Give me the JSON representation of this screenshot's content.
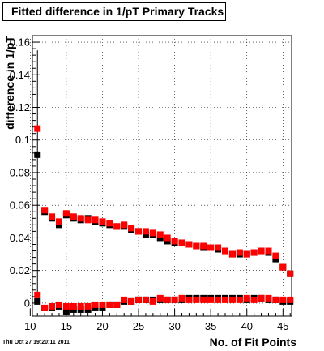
{
  "chart_data": {
    "type": "scatter",
    "title": "Fitted difference in 1/pT Primary Tracks",
    "xlabel": "No. of Fit Points",
    "ylabel": "difference in 1/pT",
    "xlim": [
      10.3,
      46.2
    ],
    "ylim": [
      -0.008,
      0.164
    ],
    "x_ticks": [
      10,
      15,
      20,
      25,
      30,
      35,
      40,
      45
    ],
    "y_ticks": [
      0,
      0.02,
      0.04,
      0.06,
      0.08,
      0.1,
      0.12,
      0.14,
      0.16
    ],
    "y_tick_labels": [
      "0",
      "0.02",
      "0.04",
      "0.06",
      "0.08",
      "0.1",
      "0.12",
      "0.14",
      "0.16"
    ],
    "grid": true,
    "series": [
      {
        "color": "#000000",
        "x": [
          11,
          12,
          13,
          14,
          15,
          16,
          17,
          18,
          19,
          20,
          21,
          22,
          23,
          24,
          25,
          26,
          27,
          28,
          29,
          30,
          31,
          32,
          33,
          34,
          35,
          36,
          37,
          38,
          39,
          40,
          41,
          42,
          43,
          44,
          45,
          46
        ],
        "y": [
          0.091,
          0.056,
          0.052,
          0.048,
          0.054,
          0.052,
          0.051,
          0.052,
          0.05,
          0.049,
          0.048,
          0.047,
          0.047,
          0.045,
          0.044,
          0.042,
          0.042,
          0.04,
          0.038,
          0.037,
          0.037,
          0.036,
          0.035,
          0.034,
          0.034,
          0.033,
          0.032,
          0.03,
          0.03,
          0.03,
          0.031,
          0.032,
          0.031,
          0.027,
          0.022,
          0.018
        ]
      },
      {
        "color": "#ff0000",
        "x": [
          11,
          12,
          13,
          14,
          15,
          16,
          17,
          18,
          19,
          20,
          21,
          22,
          23,
          24,
          25,
          26,
          27,
          28,
          29,
          30,
          31,
          32,
          33,
          34,
          35,
          36,
          37,
          38,
          39,
          40,
          41,
          42,
          43,
          44,
          45,
          46
        ],
        "y": [
          0.107,
          0.057,
          0.053,
          0.05,
          0.055,
          0.053,
          0.052,
          0.051,
          0.051,
          0.05,
          0.049,
          0.047,
          0.048,
          0.046,
          0.044,
          0.044,
          0.043,
          0.042,
          0.04,
          0.038,
          0.037,
          0.036,
          0.035,
          0.035,
          0.034,
          0.034,
          0.032,
          0.03,
          0.031,
          0.03,
          0.031,
          0.032,
          0.032,
          0.029,
          0.022,
          0.018
        ]
      },
      {
        "color": "#000000",
        "x": [
          11,
          12,
          13,
          14,
          15,
          16,
          17,
          18,
          19,
          20,
          21,
          22,
          23,
          24,
          25,
          26,
          27,
          28,
          29,
          30,
          31,
          32,
          33,
          34,
          35,
          36,
          37,
          38,
          39,
          40,
          41,
          42,
          43,
          44,
          45,
          46
        ],
        "y": [
          0.001,
          -0.003,
          -0.003,
          -0.002,
          -0.005,
          -0.004,
          -0.004,
          -0.004,
          -0.003,
          -0.003,
          -0.001,
          -0.001,
          0.001,
          0.001,
          0.002,
          0.002,
          0.002,
          0.002,
          0.002,
          0.002,
          0.002,
          0.003,
          0.003,
          0.003,
          0.003,
          0.003,
          0.003,
          0.003,
          0.003,
          0.002,
          0.003,
          0.003,
          0.002,
          0.002,
          0.001,
          0.001
        ]
      },
      {
        "color": "#ff0000",
        "x": [
          11,
          12,
          13,
          14,
          15,
          16,
          17,
          18,
          19,
          20,
          21,
          22,
          23,
          24,
          25,
          26,
          27,
          28,
          29,
          30,
          31,
          32,
          33,
          34,
          35,
          36,
          37,
          38,
          39,
          40,
          41,
          42,
          43,
          44,
          45,
          46
        ],
        "y": [
          0.005,
          -0.003,
          -0.002,
          -0.001,
          -0.002,
          -0.002,
          -0.002,
          -0.002,
          -0.001,
          -0.001,
          -0.001,
          -0.001,
          0.002,
          0.001,
          0.002,
          0.002,
          0.001,
          0.003,
          0.002,
          0.002,
          0.003,
          0.002,
          0.002,
          0.002,
          0.002,
          0.002,
          0.002,
          0.002,
          0.002,
          0.003,
          0.002,
          0.003,
          0.003,
          0.002,
          0.002,
          0.002
        ]
      }
    ]
  },
  "footer": {
    "timestamp": "Thu Oct 27 19:20:11 2011"
  }
}
